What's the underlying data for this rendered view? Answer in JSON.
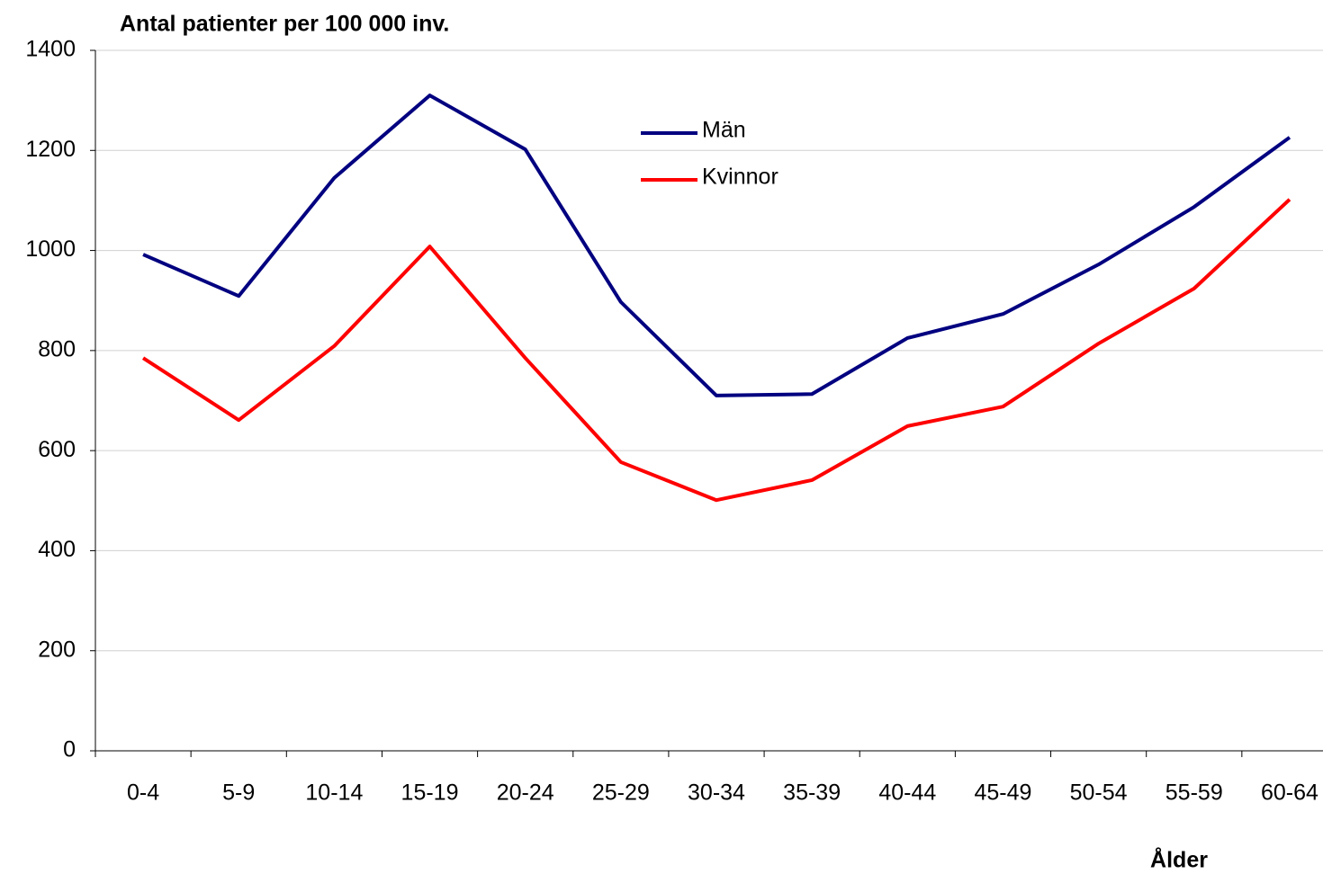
{
  "chart_data": {
    "type": "line",
    "title": "Antal patienter per 100 000 inv.",
    "x_label": "Ålder",
    "categories": [
      "0-4",
      "5-9",
      "10-14",
      "15-19",
      "20-24",
      "25-29",
      "30-34",
      "35-39",
      "40-44",
      "45-49",
      "50-54",
      "55-59",
      "60-64"
    ],
    "series": [
      {
        "name": "Män",
        "color": "#000080",
        "values": [
          992,
          909,
          1145,
          1310,
          1202,
          897,
          710,
          713,
          825,
          873,
          972,
          1087,
          1226
        ]
      },
      {
        "name": "Kvinnor",
        "color": "#ff0000",
        "values": [
          785,
          661,
          809,
          1008,
          785,
          577,
          501,
          541,
          649,
          688,
          814,
          924,
          1102
        ]
      }
    ],
    "ylim": [
      0,
      1400
    ],
    "yticks": [
      0,
      200,
      400,
      600,
      800,
      1000,
      1200,
      1400
    ],
    "grid": true,
    "legend": "top-center"
  }
}
